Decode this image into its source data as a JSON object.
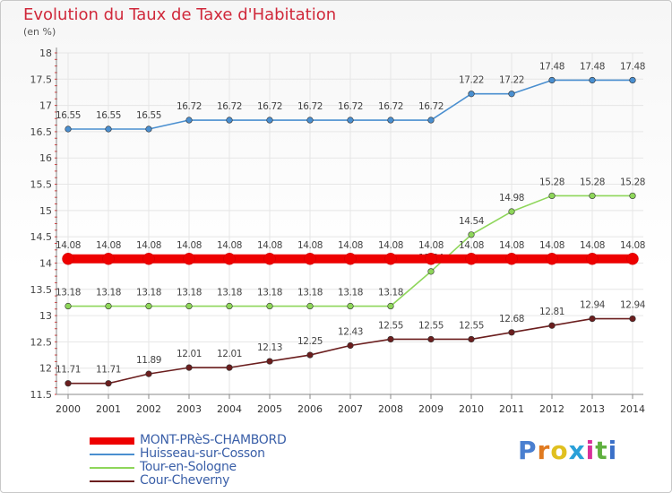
{
  "title": "Evolution du Taux de Taxe d'Habitation",
  "subtitle": "(en %)",
  "logo": {
    "letters": [
      "P",
      "r",
      "o",
      "x",
      "i",
      "t",
      "i"
    ],
    "colors": [
      "#4a7fd0",
      "#e07a20",
      "#e0c020",
      "#2aa0d8",
      "#d8309a",
      "#60b040",
      "#3a70c8"
    ]
  },
  "chart_data": {
    "type": "line",
    "title": "Evolution du Taux de Taxe d'Habitation",
    "ylabel": "(en %)",
    "xlabel": "",
    "ylim": [
      11.5,
      18
    ],
    "yticks": [
      "11.5",
      "12",
      "12.5",
      "13",
      "13.5",
      "14",
      "14.5",
      "15",
      "15.5",
      "16",
      "16.5",
      "17",
      "17.5",
      "18"
    ],
    "x": [
      "2000",
      "2001",
      "2002",
      "2003",
      "2004",
      "2005",
      "2006",
      "2007",
      "2008",
      "2009",
      "2010",
      "2011",
      "2012",
      "2013",
      "2014"
    ],
    "grid": true,
    "legend_position": "bottom-left",
    "series": [
      {
        "name": "MONT-PRèS-CHAMBORD",
        "color": "#ee0000",
        "values": [
          14.08,
          14.08,
          14.08,
          14.08,
          14.08,
          14.08,
          14.08,
          14.08,
          14.08,
          14.08,
          14.08,
          14.08,
          14.08,
          14.08,
          14.08
        ],
        "labels": [
          "14.08",
          "14.08",
          "14.08",
          "14.08",
          "14.08",
          "14.08",
          "14.08",
          "14.08",
          "14.08",
          "14.08",
          "14.08",
          "14.08",
          "14.08",
          "14.08",
          "14.08"
        ]
      },
      {
        "name": "Huisseau-sur-Cosson",
        "color": "#4a8fd0",
        "values": [
          16.55,
          16.55,
          16.55,
          16.72,
          16.72,
          16.72,
          16.72,
          16.72,
          16.72,
          16.72,
          17.22,
          17.22,
          17.48,
          17.48,
          17.48
        ],
        "labels": [
          "16.55",
          "16.55",
          "16.55",
          "16.72",
          "16.72",
          "16.72",
          "16.72",
          "16.72",
          "16.72",
          "16.72",
          "17.22",
          "17.22",
          "17.48",
          "17.48",
          "17.48"
        ]
      },
      {
        "name": "Tour-en-Sologne",
        "color": "#8ed65a",
        "values": [
          13.18,
          13.18,
          13.18,
          13.18,
          13.18,
          13.18,
          13.18,
          13.18,
          13.18,
          13.84,
          14.54,
          14.98,
          15.28,
          15.28,
          15.28
        ],
        "labels": [
          "13.18",
          "13.18",
          "13.18",
          "13.18",
          "13.18",
          "13.18",
          "13.18",
          "13.18",
          "13.18",
          "13.84",
          "14.54",
          "14.98",
          "15.28",
          "15.28",
          "15.28"
        ]
      },
      {
        "name": "Cour-Cheverny",
        "color": "#6b1e1e",
        "values": [
          11.71,
          11.71,
          11.89,
          12.01,
          12.01,
          12.13,
          12.25,
          12.43,
          12.55,
          12.55,
          12.55,
          12.68,
          12.81,
          12.94,
          12.94
        ],
        "labels": [
          "11.71",
          "11.71",
          "11.89",
          "12.01",
          "12.01",
          "12.13",
          "12.25",
          "12.43",
          "12.55",
          "12.55",
          "12.55",
          "12.68",
          "12.81",
          "12.94",
          "12.94"
        ]
      }
    ]
  }
}
